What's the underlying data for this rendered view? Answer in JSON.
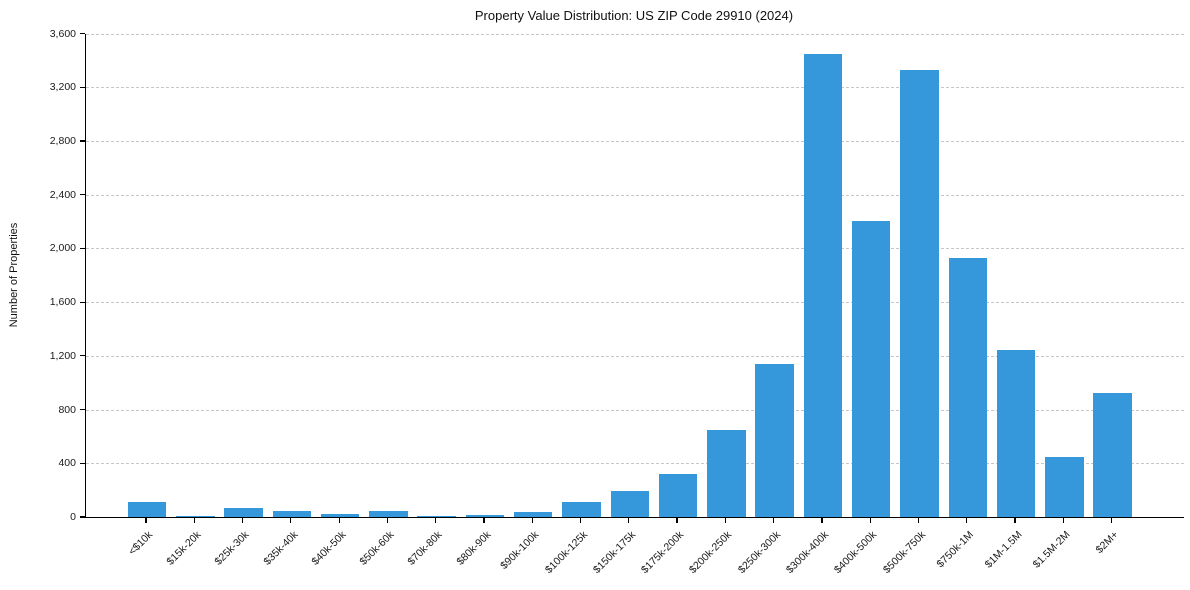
{
  "chart_data": {
    "type": "bar",
    "title": "Property Value Distribution: US ZIP Code 29910 (2024)",
    "xlabel": "",
    "ylabel": "Number of Properties",
    "categories": [
      "<$10k",
      "$15k-20k",
      "$25k-30k",
      "$35k-40k",
      "$40k-50k",
      "$50k-60k",
      "$70k-80k",
      "$80k-90k",
      "$90k-100k",
      "$100k-125k",
      "$150k-175k",
      "$175k-200k",
      "$200k-250k",
      "$250k-300k",
      "$300k-400k",
      "$400k-500k",
      "$500k-750k",
      "$750k-1M",
      "$1M-1.5M",
      "$1.5M-2M",
      "$2M+"
    ],
    "values": [
      110,
      10,
      70,
      45,
      20,
      45,
      5,
      15,
      35,
      110,
      190,
      320,
      645,
      1140,
      3450,
      2205,
      3330,
      1930,
      1240,
      445,
      920
    ],
    "ylim": [
      0,
      3600
    ],
    "ytick_interval": 400,
    "ytick_labels": [
      "0",
      "400",
      "800",
      "1,200",
      "1,600",
      "2,000",
      "2,400",
      "2,800",
      "3,200",
      "3,600"
    ],
    "grid": "horizontal-dashed",
    "legend": "none",
    "bar_color": "#3498db",
    "grid_color": "#c6c6c6",
    "axis_color": "#000000",
    "text_color": "#1a1a1a"
  }
}
